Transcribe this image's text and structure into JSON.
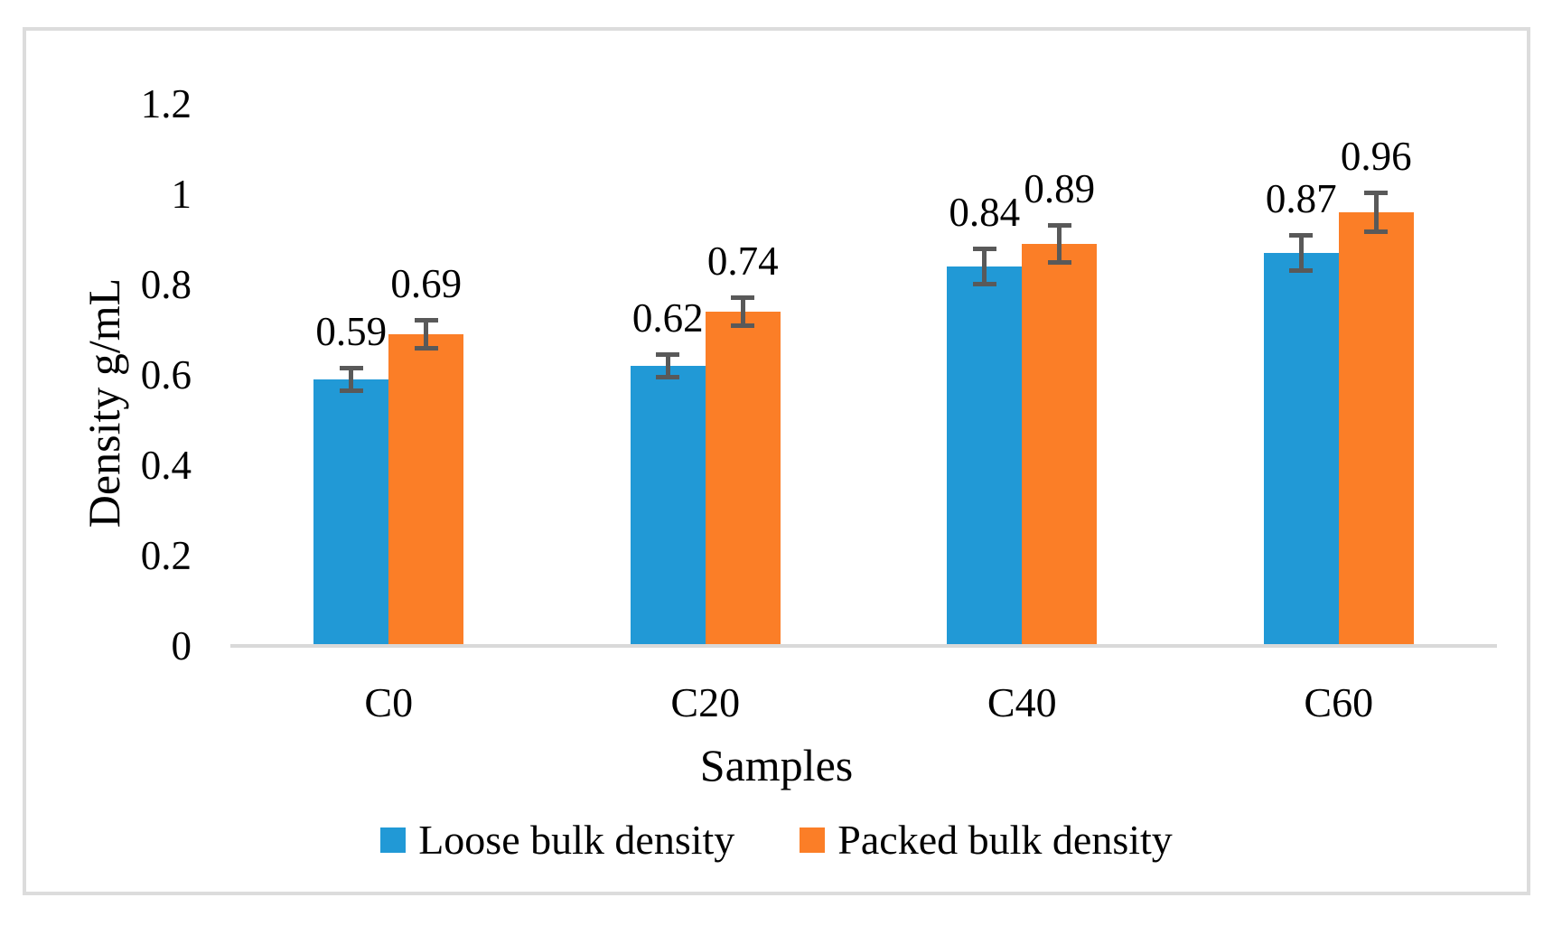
{
  "chart_data": {
    "type": "bar",
    "title": "",
    "xlabel": "Samples",
    "ylabel": "Density g/mL",
    "categories": [
      "C0",
      "C20",
      "C40",
      "C60"
    ],
    "series": [
      {
        "name": "Loose bulk density",
        "color": "#2199D6",
        "values": [
          0.59,
          0.62,
          0.84,
          0.87
        ],
        "labels": [
          "0.59",
          "0.62",
          "0.84",
          "0.87"
        ],
        "errors": [
          0.03,
          0.03,
          0.044,
          0.044
        ]
      },
      {
        "name": "Packed bulk density",
        "color": "#FB7E27",
        "values": [
          0.69,
          0.74,
          0.89,
          0.96
        ],
        "labels": [
          "0.69",
          "0.74",
          "0.89",
          "0.96"
        ],
        "errors": [
          0.036,
          0.036,
          0.046,
          0.048
        ]
      }
    ],
    "ylim": [
      0,
      1.2
    ],
    "yticks": [
      0,
      0.2,
      0.4,
      0.6,
      0.8,
      1,
      1.2
    ],
    "ytick_labels": [
      "0",
      "0.2",
      "0.4",
      "0.6",
      "0.8",
      "1",
      "1.2"
    ],
    "grid": false,
    "legend_position": "bottom",
    "error_bar_color": "#595959",
    "axis_line_color": "#D9D9D9",
    "frame_border_color": "#DCDCDC"
  }
}
